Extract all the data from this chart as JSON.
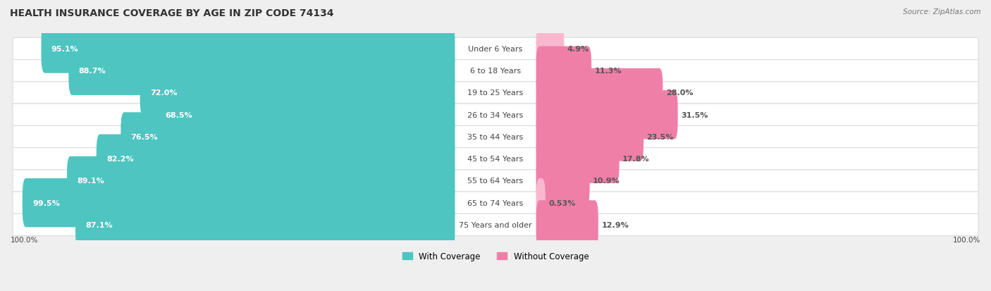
{
  "title": "HEALTH INSURANCE COVERAGE BY AGE IN ZIP CODE 74134",
  "source": "Source: ZipAtlas.com",
  "categories": [
    "Under 6 Years",
    "6 to 18 Years",
    "19 to 25 Years",
    "26 to 34 Years",
    "35 to 44 Years",
    "45 to 54 Years",
    "55 to 64 Years",
    "65 to 74 Years",
    "75 Years and older"
  ],
  "with_coverage": [
    95.1,
    88.7,
    72.0,
    68.5,
    76.5,
    82.2,
    89.1,
    99.5,
    87.1
  ],
  "without_coverage": [
    4.9,
    11.3,
    28.0,
    31.5,
    23.5,
    17.8,
    10.9,
    0.53,
    12.9
  ],
  "with_coverage_labels": [
    "95.1%",
    "88.7%",
    "72.0%",
    "68.5%",
    "76.5%",
    "82.2%",
    "89.1%",
    "99.5%",
    "87.1%"
  ],
  "without_coverage_labels": [
    "4.9%",
    "11.3%",
    "28.0%",
    "31.5%",
    "23.5%",
    "17.8%",
    "10.9%",
    "0.53%",
    "12.9%"
  ],
  "color_with": "#4EC5C1",
  "color_without": "#F07FA8",
  "color_without_light": "#F9B8CE",
  "bg_color": "#EFEFEF",
  "row_bg_odd": "#FAFAFA",
  "row_bg_even": "#F2F2F2",
  "title_fontsize": 10,
  "label_fontsize": 8,
  "category_fontsize": 8,
  "legend_fontsize": 8.5,
  "source_fontsize": 7.5
}
